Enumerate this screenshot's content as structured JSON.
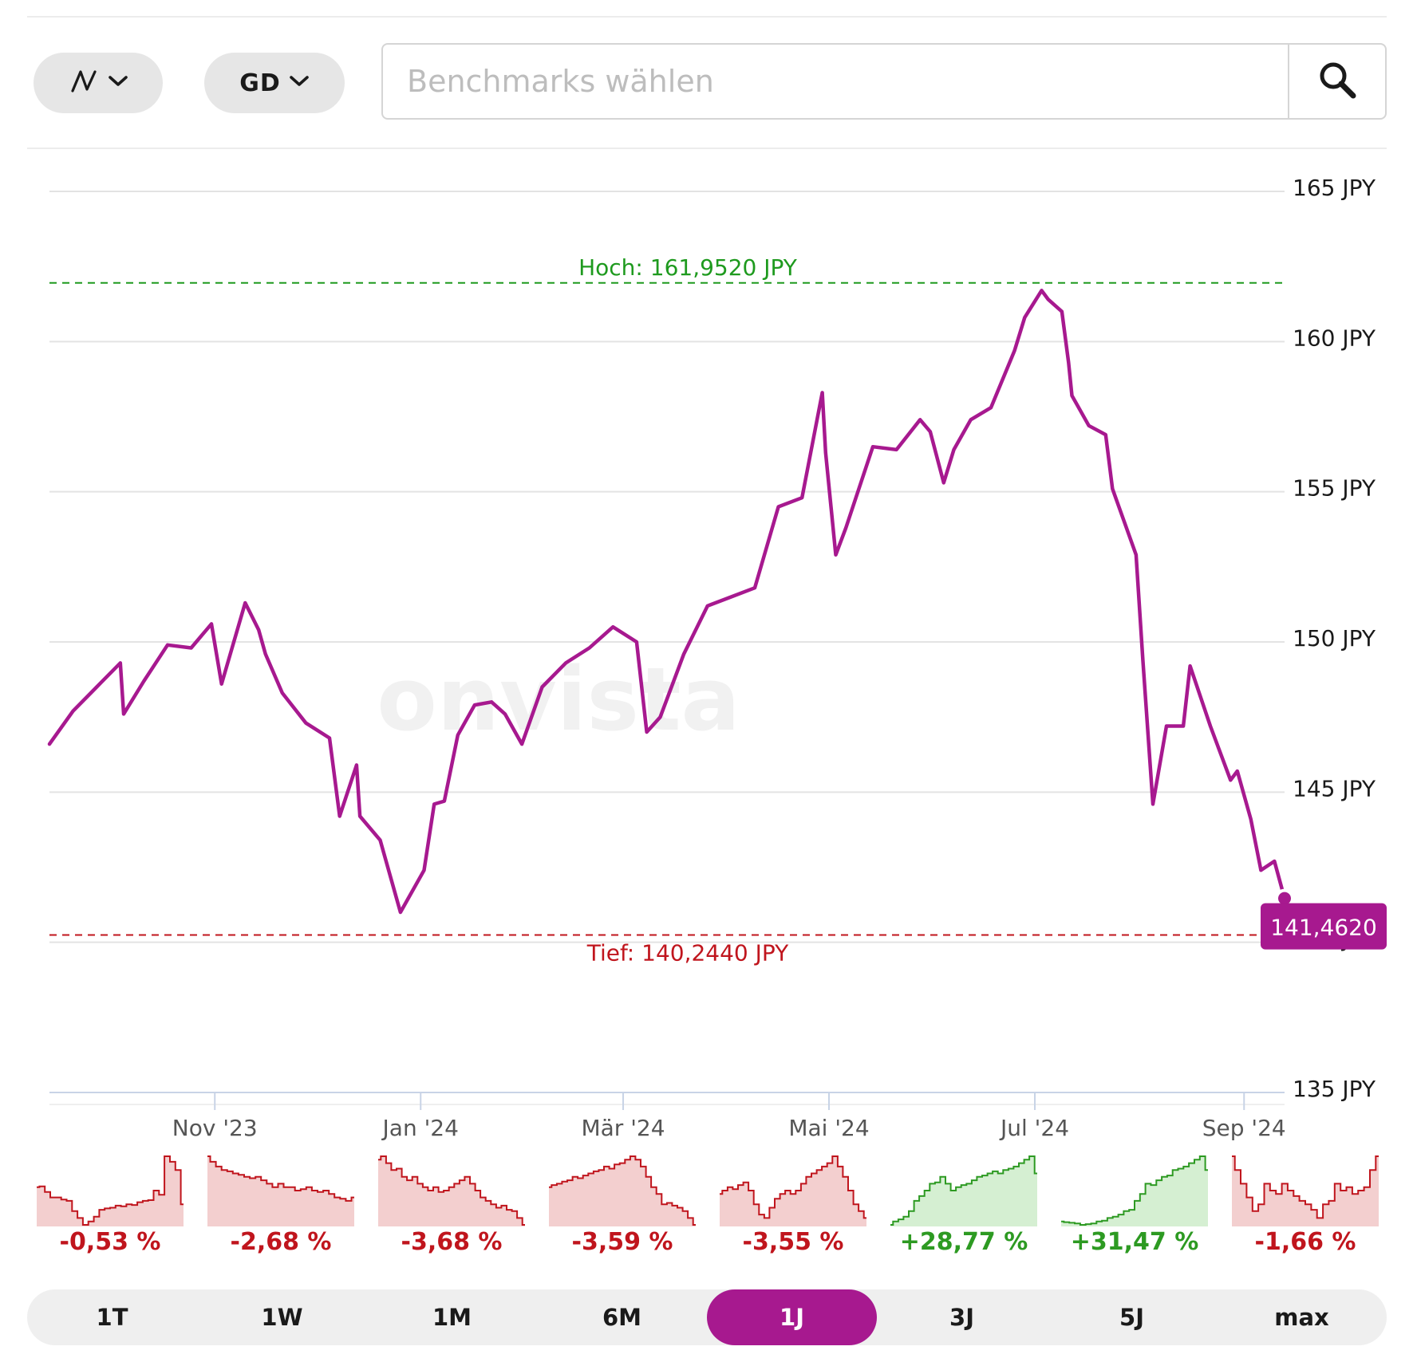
{
  "toolbar": {
    "chart_type_icon": "line-chart-icon",
    "indicator_label": "GD",
    "search_placeholder": "Benchmarks wählen",
    "search_icon": "search-icon"
  },
  "colors": {
    "line": "#a7198f",
    "high": "#1e9a1e",
    "low": "#c0151d",
    "grid": "#e3e3e3",
    "neg_fill": "#f3cfcf",
    "neg_line": "#c0151d",
    "pos_fill": "#d5efd2",
    "pos_line": "#2d9a22"
  },
  "watermark": "onvista",
  "chart_data": {
    "type": "line",
    "unit": "JPY",
    "y_ticks": [
      "135 JPY",
      "140 JPY",
      "145 JPY",
      "150 JPY",
      "155 JPY",
      "160 JPY",
      "165 JPY"
    ],
    "ylim": [
      135,
      165
    ],
    "x_ticks": [
      "Nov '23",
      "Jan '24",
      "Mär '24",
      "Mai '24",
      "Jul '24",
      "Sep '24"
    ],
    "x_range": [
      "2023-09-13",
      "2024-09-13"
    ],
    "high_label": "Hoch: 161,9520 JPY",
    "high": 161.952,
    "low_label": "Tief: 140,2440 JPY",
    "low": 140.244,
    "last_value_label": "141,4620",
    "last_value": 141.462,
    "series": [
      {
        "x": [
          "2023-09-13",
          "2023-09-20",
          "2023-09-27",
          "2023-10-04",
          "2023-10-05",
          "2023-10-11",
          "2023-10-18",
          "2023-10-25",
          "2023-10-31",
          "2023-11-03",
          "2023-11-10",
          "2023-11-14",
          "2023-11-16",
          "2023-11-21",
          "2023-11-28",
          "2023-12-05",
          "2023-12-08",
          "2023-12-13",
          "2023-12-14",
          "2023-12-20",
          "2023-12-26",
          "2024-01-02",
          "2024-01-05",
          "2024-01-08",
          "2024-01-12",
          "2024-01-17",
          "2024-01-22",
          "2024-01-26",
          "2024-01-31",
          "2024-02-06",
          "2024-02-13",
          "2024-02-20",
          "2024-02-27",
          "2024-03-05",
          "2024-03-08",
          "2024-03-12",
          "2024-03-19",
          "2024-03-26",
          "2024-04-02",
          "2024-04-09",
          "2024-04-16",
          "2024-04-23",
          "2024-04-29",
          "2024-04-30",
          "2024-05-03",
          "2024-05-06",
          "2024-05-14",
          "2024-05-21",
          "2024-05-28",
          "2024-05-31",
          "2024-06-04",
          "2024-06-07",
          "2024-06-12",
          "2024-06-18",
          "2024-06-25",
          "2024-06-28",
          "2024-07-03",
          "2024-07-05",
          "2024-07-09",
          "2024-07-11",
          "2024-07-12",
          "2024-07-17",
          "2024-07-22",
          "2024-07-24",
          "2024-07-31",
          "2024-08-02",
          "2024-08-05",
          "2024-08-09",
          "2024-08-14",
          "2024-08-16",
          "2024-08-22",
          "2024-08-28",
          "2024-08-30",
          "2024-09-03",
          "2024-09-06",
          "2024-09-10",
          "2024-09-13"
        ],
        "values": [
          146.6,
          147.7,
          148.5,
          149.3,
          147.6,
          148.7,
          149.9,
          149.8,
          150.6,
          148.6,
          151.3,
          150.4,
          149.6,
          148.3,
          147.3,
          146.8,
          144.2,
          145.9,
          144.2,
          143.4,
          141.0,
          142.4,
          144.6,
          144.7,
          146.9,
          147.9,
          148.0,
          147.6,
          146.6,
          148.5,
          149.3,
          149.8,
          150.5,
          150.0,
          147.0,
          147.5,
          149.6,
          151.2,
          151.5,
          151.8,
          154.5,
          154.8,
          158.3,
          156.3,
          152.9,
          153.8,
          156.5,
          156.4,
          157.4,
          157.0,
          155.3,
          156.4,
          157.4,
          157.8,
          159.7,
          160.8,
          161.7,
          161.4,
          161.0,
          159.3,
          158.2,
          157.2,
          156.9,
          155.1,
          152.9,
          149.4,
          144.6,
          147.2,
          147.2,
          149.2,
          147.2,
          145.4,
          145.7,
          144.1,
          142.4,
          142.7,
          141.462
        ]
      }
    ]
  },
  "mini_charts": [
    {
      "change": "-0,53 %",
      "positive": false,
      "values": [
        0.55,
        0.56,
        0.48,
        0.4,
        0.4,
        0.37,
        0.35,
        0.2,
        0.1,
        0.0,
        0.05,
        0.12,
        0.22,
        0.24,
        0.25,
        0.28,
        0.27,
        0.3,
        0.29,
        0.33,
        0.35,
        0.36,
        0.5,
        0.44,
        1.0,
        0.92,
        0.8,
        0.3
      ]
    },
    {
      "change": "-2,68 %",
      "positive": false,
      "values": [
        1.0,
        0.92,
        0.85,
        0.8,
        0.78,
        0.75,
        0.73,
        0.7,
        0.68,
        0.7,
        0.65,
        0.6,
        0.55,
        0.6,
        0.55,
        0.55,
        0.5,
        0.52,
        0.55,
        0.5,
        0.48,
        0.5,
        0.45,
        0.4,
        0.38,
        0.35,
        0.4
      ]
    },
    {
      "change": "-3,68 %",
      "positive": false,
      "values": [
        0.95,
        1.0,
        0.9,
        0.8,
        0.82,
        0.7,
        0.65,
        0.7,
        0.6,
        0.55,
        0.5,
        0.55,
        0.48,
        0.5,
        0.55,
        0.6,
        0.65,
        0.7,
        0.6,
        0.5,
        0.4,
        0.35,
        0.3,
        0.25,
        0.28,
        0.22,
        0.2,
        0.1,
        0.0
      ]
    },
    {
      "change": "-3,59 %",
      "positive": false,
      "values": [
        0.55,
        0.58,
        0.6,
        0.63,
        0.65,
        0.7,
        0.68,
        0.72,
        0.75,
        0.78,
        0.8,
        0.85,
        0.82,
        0.88,
        0.9,
        0.95,
        1.0,
        0.95,
        0.85,
        0.7,
        0.55,
        0.45,
        0.3,
        0.32,
        0.28,
        0.25,
        0.2,
        0.1,
        0.0
      ]
    },
    {
      "change": "-3,55 %",
      "positive": false,
      "values": [
        0.45,
        0.5,
        0.55,
        0.52,
        0.58,
        0.62,
        0.5,
        0.3,
        0.15,
        0.1,
        0.25,
        0.38,
        0.45,
        0.5,
        0.45,
        0.5,
        0.6,
        0.7,
        0.75,
        0.8,
        0.85,
        0.9,
        1.0,
        0.85,
        0.7,
        0.5,
        0.3,
        0.2,
        0.1
      ]
    },
    {
      "change": "+28,77 %",
      "positive": true,
      "values": [
        0.0,
        0.05,
        0.08,
        0.12,
        0.2,
        0.35,
        0.42,
        0.5,
        0.6,
        0.62,
        0.7,
        0.6,
        0.5,
        0.55,
        0.58,
        0.6,
        0.65,
        0.7,
        0.72,
        0.75,
        0.78,
        0.75,
        0.8,
        0.82,
        0.85,
        0.9,
        0.95,
        1.0,
        0.75
      ]
    },
    {
      "change": "+31,47 %",
      "positive": true,
      "values": [
        0.05,
        0.04,
        0.03,
        0.02,
        0.0,
        0.01,
        0.02,
        0.05,
        0.06,
        0.1,
        0.12,
        0.15,
        0.2,
        0.22,
        0.35,
        0.45,
        0.6,
        0.58,
        0.65,
        0.7,
        0.72,
        0.8,
        0.82,
        0.85,
        0.9,
        0.95,
        1.0,
        0.8
      ]
    },
    {
      "change": "-1,66 %",
      "positive": false,
      "values": [
        1.0,
        0.8,
        0.6,
        0.4,
        0.2,
        0.3,
        0.6,
        0.5,
        0.45,
        0.6,
        0.5,
        0.42,
        0.35,
        0.3,
        0.22,
        0.1,
        0.3,
        0.35,
        0.6,
        0.5,
        0.55,
        0.45,
        0.5,
        0.55,
        0.8,
        1.0
      ]
    }
  ],
  "tabs": [
    {
      "label": "1T",
      "active": false
    },
    {
      "label": "1W",
      "active": false
    },
    {
      "label": "1M",
      "active": false
    },
    {
      "label": "6M",
      "active": false
    },
    {
      "label": "1J",
      "active": true
    },
    {
      "label": "3J",
      "active": false
    },
    {
      "label": "5J",
      "active": false
    },
    {
      "label": "max",
      "active": false
    }
  ]
}
